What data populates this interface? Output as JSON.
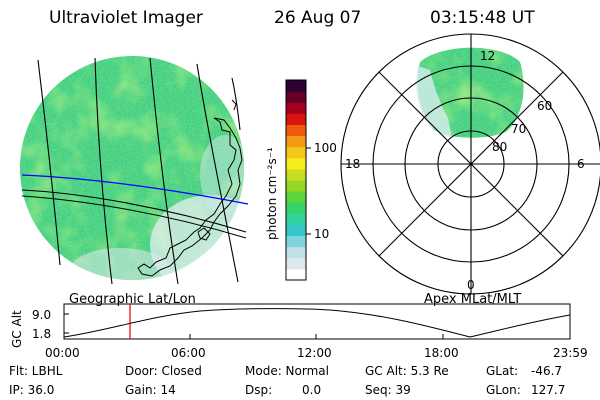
{
  "header": {
    "instrument": "Ultraviolet Imager",
    "date": "26 Aug 07",
    "time": "03:15:48 UT"
  },
  "geo_panel": {
    "label": "Geographic Lat/Lon"
  },
  "colorbar": {
    "unit_label": "photon cm⁻²s⁻¹",
    "ticks": [
      "100",
      "10"
    ],
    "scale": "log",
    "range": [
      2,
      500
    ],
    "colors": [
      "#ffffff",
      "#dfe8ea",
      "#bfe0e6",
      "#7fd4de",
      "#33c6cc",
      "#2fd39c",
      "#36d36a",
      "#5cd43a",
      "#94d726",
      "#c8dd1f",
      "#f5ed1e",
      "#f6c81b",
      "#f59a14",
      "#ee5a0e",
      "#d9140e",
      "#a3001d",
      "#650024",
      "#2b0033"
    ]
  },
  "polar_panel": {
    "label": "Apex MLat/MLT",
    "mlt_labels": [
      "12",
      "18",
      "6",
      "0"
    ],
    "lat_labels": [
      "60",
      "70",
      "80"
    ]
  },
  "altitude_plot": {
    "ylabel": "GC Alt",
    "yticks": [
      "9.0",
      "1.8"
    ],
    "xticks": [
      "00:00",
      "06:00",
      "12:00",
      "18:00",
      "23:59"
    ],
    "cursor_time": "03:15"
  },
  "status": {
    "flt": "Flt: LBHL",
    "ip": "IP: 36.0",
    "door": "Door: Closed",
    "gain": "Gain: 14",
    "mode": "Mode: Normal",
    "dsp_label": "Dsp:",
    "dsp_value": "0.0",
    "gc_alt": "GC Alt: 5.3 Re",
    "seq": "Seq: 39",
    "glat_label": "GLat:",
    "glat_value": "-46.7",
    "glon_label": "GLon:",
    "glon_value": "127.7"
  },
  "colors": {
    "aurora_green": "#5cd43a",
    "cyan": "#33c6cc",
    "grid_blue": "#0000ff",
    "cursor_red": "#e00000"
  }
}
